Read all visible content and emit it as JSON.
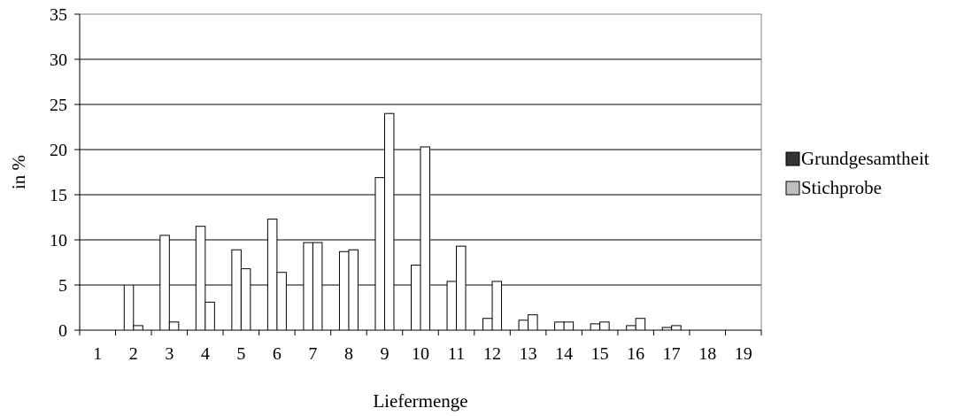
{
  "chart_data": {
    "type": "bar",
    "xlabel": "Liefermenge",
    "ylabel": "in %",
    "ylim": [
      0,
      35
    ],
    "yticks": [
      0,
      5,
      10,
      15,
      20,
      25,
      30,
      35
    ],
    "grid": true,
    "legend_position": "right",
    "categories": [
      "1",
      "2",
      "3",
      "4",
      "5",
      "6",
      "7",
      "8",
      "9",
      "10",
      "11",
      "12",
      "13",
      "14",
      "15",
      "16",
      "17",
      "18",
      "19"
    ],
    "series": [
      {
        "name": "Grundgesamtheit",
        "legend_color": "#333333",
        "bar_fill": "#ffffff",
        "values": [
          0,
          5.0,
          10.5,
          11.5,
          8.9,
          12.3,
          9.7,
          8.7,
          16.9,
          7.2,
          5.4,
          1.3,
          1.1,
          0.9,
          0.7,
          0.5,
          0.3,
          0,
          0
        ]
      },
      {
        "name": "Stichprobe",
        "legend_color": "#bfbfbf",
        "bar_fill": "#ffffff",
        "values": [
          0,
          0.5,
          0.9,
          3.1,
          6.8,
          6.4,
          9.7,
          8.9,
          24.0,
          20.3,
          9.3,
          5.4,
          1.7,
          0.9,
          0.9,
          1.3,
          0.5,
          0,
          0
        ]
      }
    ]
  }
}
